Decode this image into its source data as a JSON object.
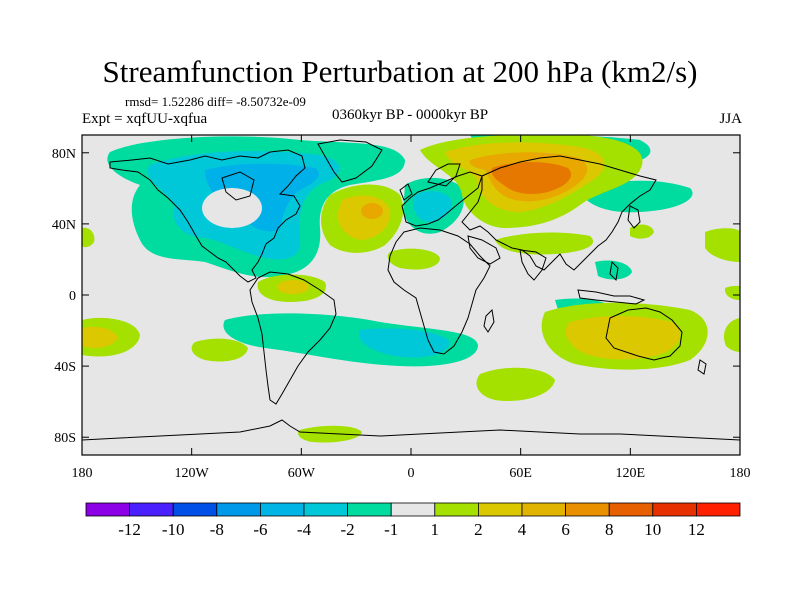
{
  "title": "Streamfunction Perturbation at 200 hPa (km2/s)",
  "stats": "rmsd= 1.52286 diff= -8.50732e-09",
  "experiment": "Expt = xqfUU-xqfua",
  "period": "0360kyr BP - 0000kyr BP",
  "season": "JJA",
  "colors": {
    "background": "#e6e6e6",
    "coast": "#000000",
    "neg2": "#00dba0",
    "neg4": "#00c8d8",
    "neg6": "#00b0e8",
    "pos2": "#a4e000",
    "pos4": "#dcc800",
    "pos6": "#e8a800",
    "pos8": "#e67800"
  },
  "chart_data": {
    "type": "heatmap",
    "projection": "cylindrical-equidistant",
    "lon_range": [
      -180,
      180
    ],
    "lat_range": [
      -90,
      90
    ],
    "x_ticks": [
      "180",
      "120W",
      "60W",
      "0",
      "60E",
      "120E",
      "180"
    ],
    "y_ticks": [
      "80N",
      "40N",
      "0",
      "40S",
      "80S"
    ],
    "colorbar": {
      "boundaries": [
        "-12",
        "-10",
        "-8",
        "-6",
        "-4",
        "-2",
        "-1",
        "1",
        "2",
        "4",
        "6",
        "8",
        "10",
        "12"
      ],
      "colors": [
        "#8b00e6",
        "#4a20ff",
        "#0050e8",
        "#0098e8",
        "#00b4e6",
        "#00c8d8",
        "#00dba0",
        "#e6e6e6",
        "#a4e000",
        "#dcc800",
        "#e0b400",
        "#e89000",
        "#e66000",
        "#e63000",
        "#ff2000"
      ]
    }
  }
}
